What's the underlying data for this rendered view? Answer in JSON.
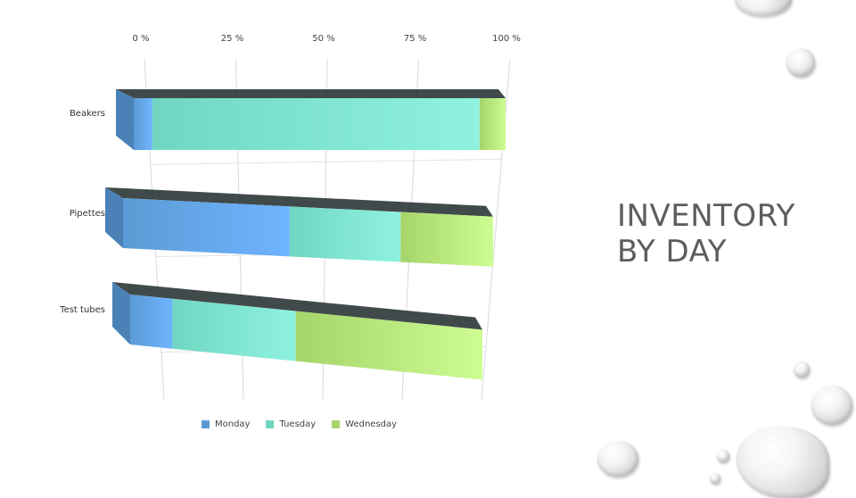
{
  "slide": {
    "title_line1": "INVENTORY",
    "title_line2": "BY DAY"
  },
  "chart_data": {
    "type": "bar",
    "orientation": "horizontal",
    "stacked": "percent",
    "categories": [
      "Beakers",
      "Pipettes",
      "Test tubes"
    ],
    "series": [
      {
        "name": "Monday",
        "color": "#5b9bd5",
        "values": [
          5,
          45,
          12
        ]
      },
      {
        "name": "Tuesday",
        "color": "#70d6c2",
        "values": [
          88,
          30,
          35
        ]
      },
      {
        "name": "Wednesday",
        "color": "#a5d46a",
        "values": [
          7,
          25,
          53
        ]
      }
    ],
    "xaxis_ticks": [
      "0 %",
      "25 %",
      "50 %",
      "75 %",
      "100 %"
    ],
    "xlim": [
      0,
      100
    ],
    "grid": true,
    "legend_position": "bottom"
  },
  "decor": {
    "water_drops": true
  }
}
